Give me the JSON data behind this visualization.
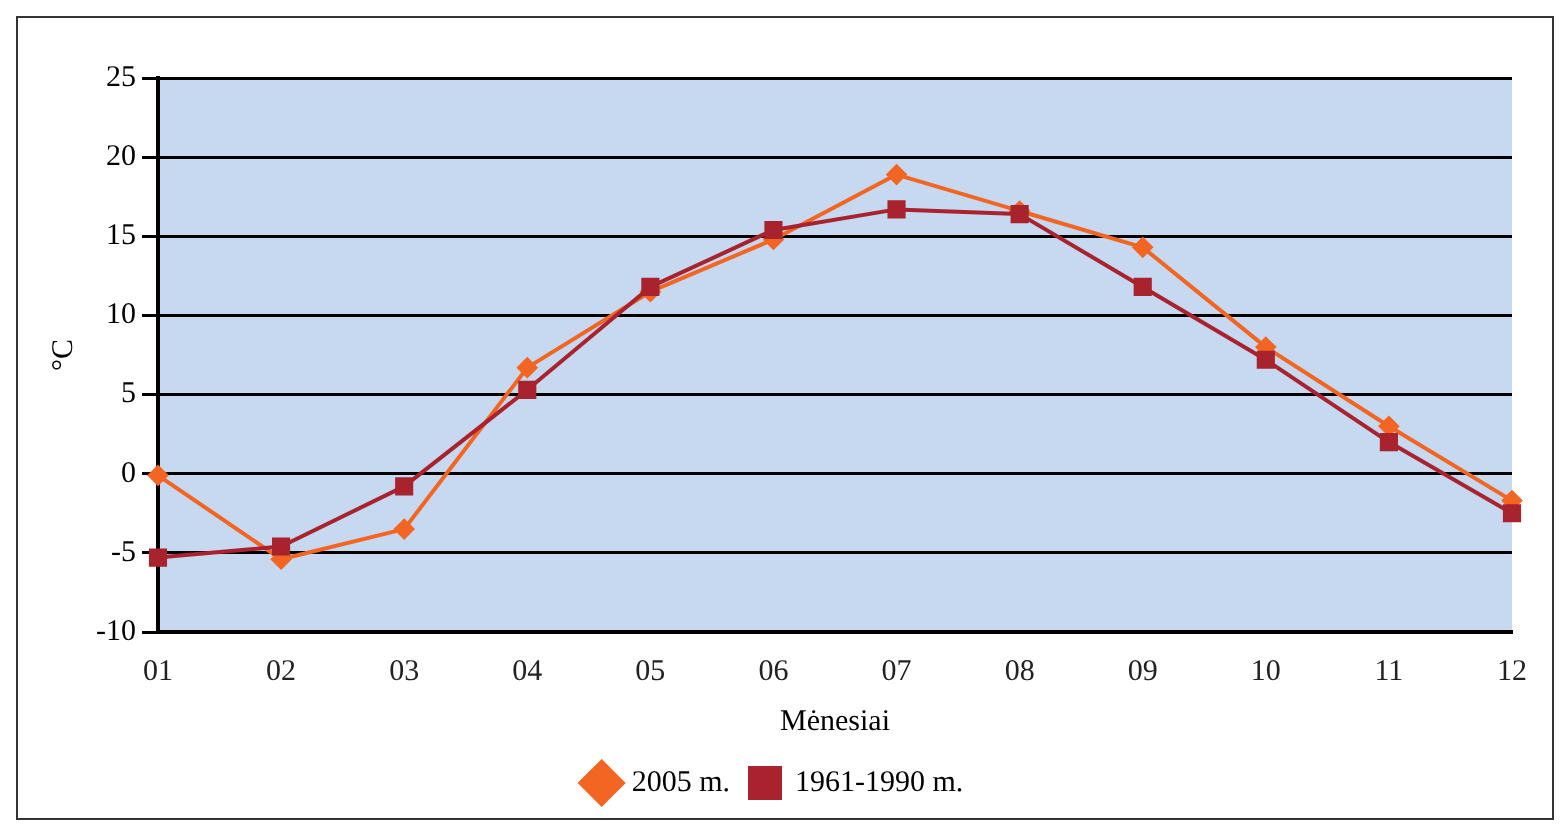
{
  "chart_data": {
    "type": "line",
    "xlabel": "Mėnesiai",
    "ylabel": "°C",
    "categories": [
      "01",
      "02",
      "03",
      "04",
      "05",
      "06",
      "07",
      "08",
      "09",
      "10",
      "11",
      "12"
    ],
    "series": [
      {
        "name": "2005 m.",
        "color": "#f26522",
        "marker": "diamond",
        "values": [
          -0.1,
          -5.4,
          -3.5,
          6.7,
          11.5,
          14.8,
          18.9,
          16.6,
          14.3,
          8.0,
          3.0,
          -1.7
        ]
      },
      {
        "name": "1961-1990 m.",
        "color": "#a8232d",
        "marker": "square",
        "values": [
          -5.3,
          -4.6,
          -0.8,
          5.3,
          11.8,
          15.4,
          16.7,
          16.4,
          11.8,
          7.2,
          2.0,
          -2.5
        ]
      }
    ],
    "ylim": [
      -10,
      25
    ],
    "yticks": [
      -10,
      -5,
      0,
      5,
      10,
      15,
      20,
      25
    ],
    "grid": "y",
    "legend": "bottom"
  }
}
